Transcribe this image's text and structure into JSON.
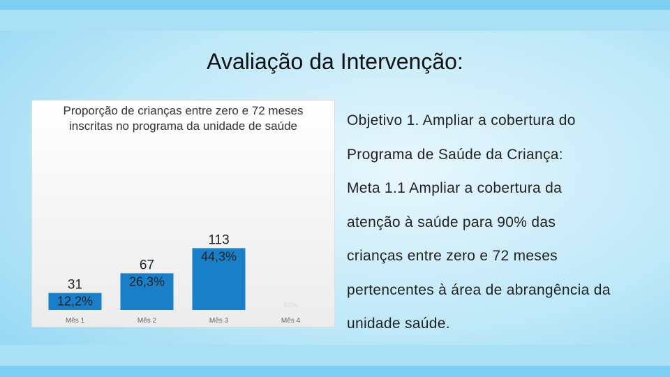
{
  "slide_title": "Avaliação da Intervenção:",
  "text_lines": [
    "Objetivo 1. Ampliar a cobertura do",
    "Programa de Saúde da Criança:",
    "Meta 1.1 Ampliar a cobertura da",
    "atenção à saúde para 90% das",
    "crianças entre zero e 72 meses",
    "pertencentes à área de abrangência da",
    "unidade saúde."
  ],
  "chart_data": {
    "type": "bar",
    "title": "Proporção de crianças entre zero e 72 meses inscritas no programa da unidade de saúde",
    "categories": [
      "Mês 1",
      "Mês 2",
      "Mês 3",
      "Mês 4"
    ],
    "values": [
      12.2,
      26.3,
      44.3,
      0
    ],
    "value_labels": [
      "12,2%",
      "26,3%",
      "44,3%",
      "0,0%"
    ],
    "counts": [
      31,
      67,
      113,
      null
    ],
    "color": "#1a7fc9"
  }
}
